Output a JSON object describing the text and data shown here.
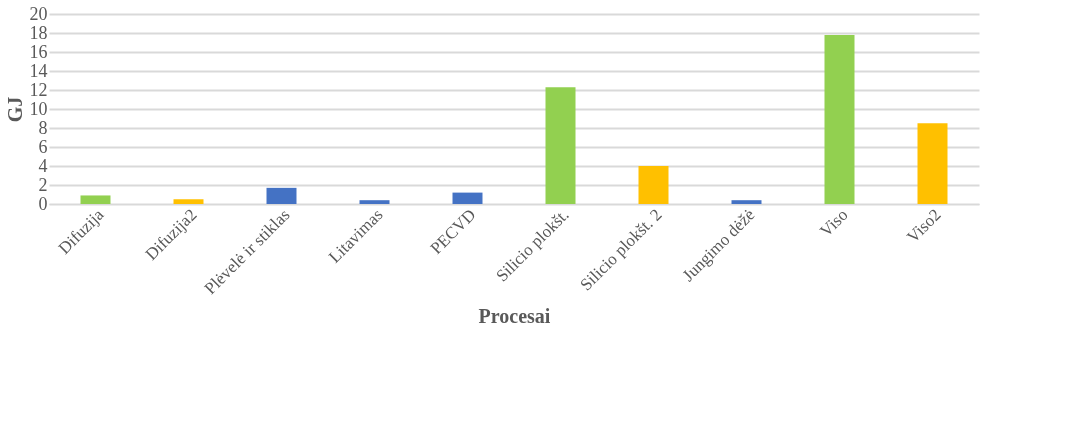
{
  "chart_data": {
    "type": "bar",
    "xlabel": "Procesai",
    "ylabel": "GJ",
    "categories": [
      "Difuzija",
      "Difuzija2",
      "Plėvelė ir stiklas",
      "Litavimas",
      "PECVD",
      "Silicio plokšt.",
      "Silicio plokšt. 2",
      "Jungimo dėžė",
      "Viso",
      "Viso2"
    ],
    "values": [
      0.9,
      0.5,
      1.7,
      0.4,
      1.2,
      12.3,
      4.0,
      0.4,
      17.8,
      8.5
    ],
    "colors": [
      "#92d050",
      "#ffc000",
      "#4472c4",
      "#4472c4",
      "#4472c4",
      "#92d050",
      "#ffc000",
      "#4472c4",
      "#92d050",
      "#ffc000"
    ],
    "ylim": [
      0,
      20
    ],
    "yticks": [
      0,
      2,
      4,
      6,
      8,
      10,
      12,
      14,
      16,
      18,
      20
    ],
    "grid": "y",
    "legend": false
  }
}
